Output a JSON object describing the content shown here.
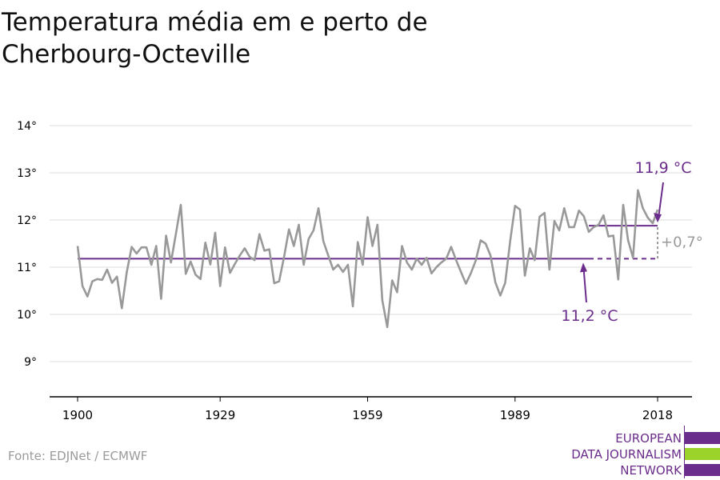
{
  "title": "Temperatura média em e perto de Cherbourg-Octeville",
  "source": "Fonte: EDJNet / ECMWF",
  "logo": {
    "lines": [
      "EUROPEAN",
      "DATA JOURNALISM",
      "NETWORK"
    ],
    "colors": {
      "purple": "#6b2d8b",
      "green": "#9bd32b"
    }
  },
  "chart_data": {
    "type": "line",
    "x_ticks": [
      1900,
      1929,
      1959,
      1989,
      2018
    ],
    "y_ticks": [
      9,
      10,
      11,
      12,
      13,
      14
    ],
    "y_tick_labels": [
      "9°",
      "10°",
      "11°",
      "12°",
      "13°",
      "14°"
    ],
    "ylim": [
      8.3,
      14.3
    ],
    "xlim": [
      1894,
      2024
    ],
    "grid": true,
    "series": [
      {
        "color": "#999999",
        "x": [
          1900,
          1901,
          1902,
          1903,
          1904,
          1905,
          1906,
          1907,
          1908,
          1909,
          1910,
          1911,
          1912,
          1913,
          1914,
          1915,
          1916,
          1917,
          1918,
          1919,
          1920,
          1921,
          1922,
          1923,
          1924,
          1925,
          1926,
          1927,
          1928,
          1929,
          1930,
          1931,
          1932,
          1933,
          1934,
          1935,
          1936,
          1937,
          1938,
          1939,
          1940,
          1941,
          1942,
          1943,
          1944,
          1945,
          1946,
          1947,
          1948,
          1949,
          1950,
          1951,
          1952,
          1953,
          1954,
          1955,
          1956,
          1957,
          1958,
          1959,
          1960,
          1961,
          1962,
          1963,
          1964,
          1965,
          1966,
          1967,
          1968,
          1969,
          1970,
          1971,
          1972,
          1973,
          1974,
          1975,
          1976,
          1977,
          1978,
          1979,
          1980,
          1981,
          1982,
          1983,
          1984,
          1985,
          1986,
          1987,
          1988,
          1989,
          1990,
          1991,
          1992,
          1993,
          1994,
          1995,
          1996,
          1997,
          1998,
          1999,
          2000,
          2001,
          2002,
          2003,
          2004,
          2005,
          2006,
          2007,
          2008,
          2009,
          2010,
          2011,
          2012,
          2013,
          2014,
          2015,
          2016,
          2017,
          2018
        ],
        "values": [
          11.45,
          10.6,
          10.38,
          10.7,
          10.75,
          10.73,
          10.95,
          10.67,
          10.8,
          10.13,
          10.89,
          11.43,
          11.29,
          11.42,
          11.42,
          11.05,
          11.45,
          10.33,
          11.67,
          11.1,
          11.71,
          12.32,
          10.86,
          11.12,
          10.84,
          10.75,
          11.52,
          11.06,
          11.73,
          10.6,
          11.42,
          10.88,
          11.07,
          11.25,
          11.4,
          11.22,
          11.15,
          11.7,
          11.35,
          11.38,
          10.66,
          10.7,
          11.22,
          11.8,
          11.45,
          11.9,
          11.05,
          11.6,
          11.78,
          12.25,
          11.55,
          11.25,
          10.95,
          11.05,
          10.9,
          11.05,
          10.17,
          11.53,
          11.05,
          12.06,
          11.45,
          11.9,
          10.3,
          9.73,
          10.72,
          10.47,
          11.45,
          11.1,
          10.95,
          11.18,
          11.05,
          11.2,
          10.87,
          11.0,
          11.1,
          11.18,
          11.43,
          11.15,
          10.9,
          10.65,
          10.87,
          11.14,
          11.57,
          11.5,
          11.25,
          10.68,
          10.4,
          10.67,
          11.55,
          12.3,
          12.22,
          10.82,
          11.4,
          11.15,
          12.07,
          12.15,
          10.95,
          11.98,
          11.78,
          12.25,
          11.85,
          11.85,
          12.2,
          12.08,
          11.75,
          11.85,
          11.9,
          12.1,
          11.65,
          11.67,
          10.74,
          12.32,
          11.57,
          11.2,
          12.63,
          12.25,
          12.05,
          11.93,
          12.22
        ]
      }
    ],
    "reference_lines": [
      {
        "label": "11,2 °C",
        "value": 11.18,
        "x_start": 1900,
        "x_end": 2004,
        "dashed_to": 2018,
        "color": "#6b2d8b"
      },
      {
        "label": "11,9 °C",
        "value": 11.88,
        "x_start": 2004,
        "x_end": 2018,
        "color": "#6b2d8b"
      }
    ],
    "difference_label": "+0,7°"
  }
}
